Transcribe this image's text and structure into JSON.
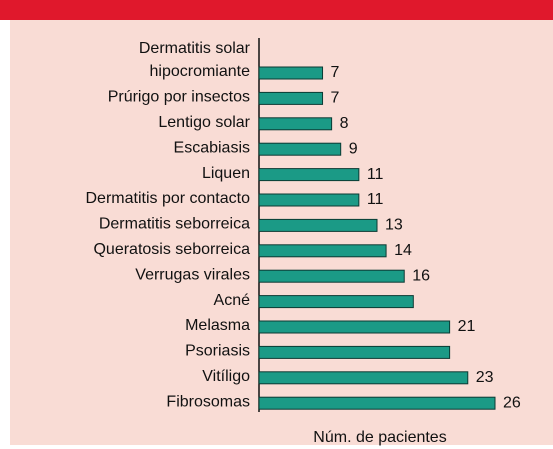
{
  "chart_data": {
    "type": "bar",
    "orientation": "horizontal",
    "categories": [
      "Dermatitis solar\nhipocromiante",
      "Prúrigo por insectos",
      "Lentigo solar",
      "Escabiasis",
      "Liquen",
      "Dermatitis por contacto",
      "Dermatitis seborreica",
      "Queratosis seborreica",
      "Verrugas virales",
      "Acné",
      "Melasma",
      "Psoriasis",
      "Vitíligo",
      "Fibrosomas"
    ],
    "values": [
      7,
      7,
      8,
      9,
      11,
      11,
      13,
      14,
      16,
      17,
      21,
      21,
      23,
      26
    ],
    "value_labels": [
      "7",
      "7",
      "8",
      "9",
      "11",
      "11",
      "13",
      "14",
      "16",
      null,
      "21",
      null,
      "23",
      "26"
    ],
    "xlabel": "Núm. de pacientes",
    "xlim": [
      0,
      26
    ],
    "color": "#1b9a86",
    "header_color": "#e0182c",
    "background": "#f9dcd5"
  }
}
